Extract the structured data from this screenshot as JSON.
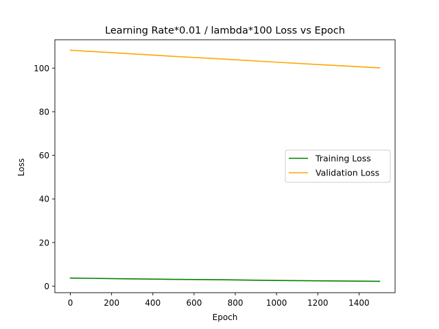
{
  "chart_data": {
    "type": "line",
    "title": "Learning Rate*0.01 / lambda*100 Loss vs Epoch",
    "xlabel": "Epoch",
    "ylabel": "Loss",
    "xlim": [
      -75,
      1575
    ],
    "ylim": [
      -3,
      113
    ],
    "xticks": [
      0,
      200,
      400,
      600,
      800,
      1000,
      1200,
      1400
    ],
    "yticks": [
      0,
      20,
      40,
      60,
      80,
      100
    ],
    "grid": false,
    "legend_position": "center-right",
    "series": [
      {
        "name": "Training Loss",
        "color": "#008000",
        "x": [
          0,
          250,
          500,
          750,
          1000,
          1250,
          1500
        ],
        "y": [
          3.7,
          3.4,
          3.1,
          2.9,
          2.6,
          2.4,
          2.2
        ]
      },
      {
        "name": "Validation Loss",
        "color": "#FFA500",
        "x": [
          0,
          250,
          500,
          750,
          1000,
          1250,
          1500
        ],
        "y": [
          108.2,
          106.8,
          105.4,
          104.1,
          102.7,
          101.4,
          100.1
        ]
      }
    ]
  }
}
